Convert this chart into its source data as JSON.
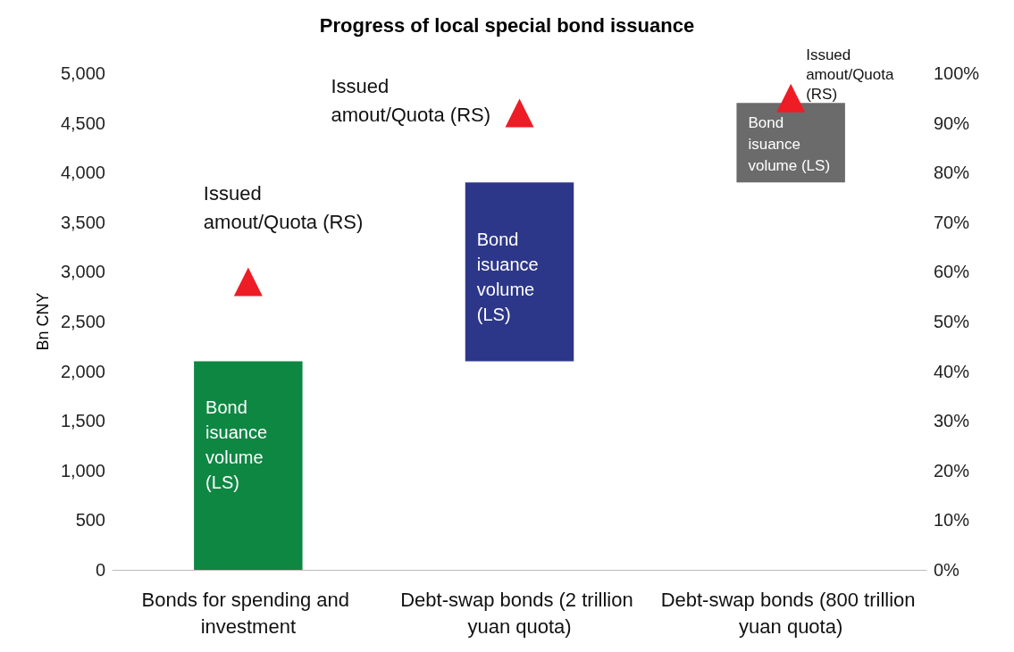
{
  "chart_data": {
    "type": "bar",
    "title": "Progress of local special bond issuance",
    "ylabel": "Bn CNY",
    "categories": [
      "Bonds for spending and investment",
      "Debt-swap bonds (2 trillion yuan quota)",
      "Debt-swap bonds (800 trillion yuan quota)"
    ],
    "series": [
      {
        "name": "Bond isuance volume (LS)",
        "colors": [
          "#0e8743",
          "#2d3789",
          "#6b6b6b"
        ],
        "base": [
          0,
          2100,
          3900
        ],
        "values": [
          2100,
          1800,
          800
        ]
      },
      {
        "type": "scatter",
        "name": "Issued amout/Quota (RS)",
        "color": "#ee1c25",
        "axis": "y2",
        "marker": "triangle",
        "values": [
          58,
          92,
          95
        ]
      }
    ],
    "ylim": [
      0,
      5000
    ],
    "yticks": [
      0,
      500,
      {
        "value": 1000,
        "label": "1,000"
      },
      {
        "value": 1500,
        "label": "1,500"
      },
      {
        "value": 2000,
        "label": "2,000"
      },
      {
        "value": 2500,
        "label": "2,500"
      },
      {
        "value": 3000,
        "label": "3,000"
      },
      {
        "value": 3500,
        "label": "3,500"
      },
      {
        "value": 4000,
        "label": "4,000"
      },
      {
        "value": 4500,
        "label": "4,500"
      },
      {
        "value": 5000,
        "label": "5,000"
      }
    ],
    "y2lim": [
      0,
      100
    ],
    "y2ticks": [
      {
        "value": 0,
        "label": "0%"
      },
      {
        "value": 10,
        "label": "10%"
      },
      {
        "value": 20,
        "label": "20%"
      },
      {
        "value": 30,
        "label": "30%"
      },
      {
        "value": 40,
        "label": "40%"
      },
      {
        "value": 50,
        "label": "50%"
      },
      {
        "value": 60,
        "label": "60%"
      },
      {
        "value": 70,
        "label": "70%"
      },
      {
        "value": 80,
        "label": "80%"
      },
      {
        "value": 90,
        "label": "90%"
      },
      {
        "value": 100,
        "label": "100%"
      }
    ],
    "grid": false,
    "legend": false
  }
}
